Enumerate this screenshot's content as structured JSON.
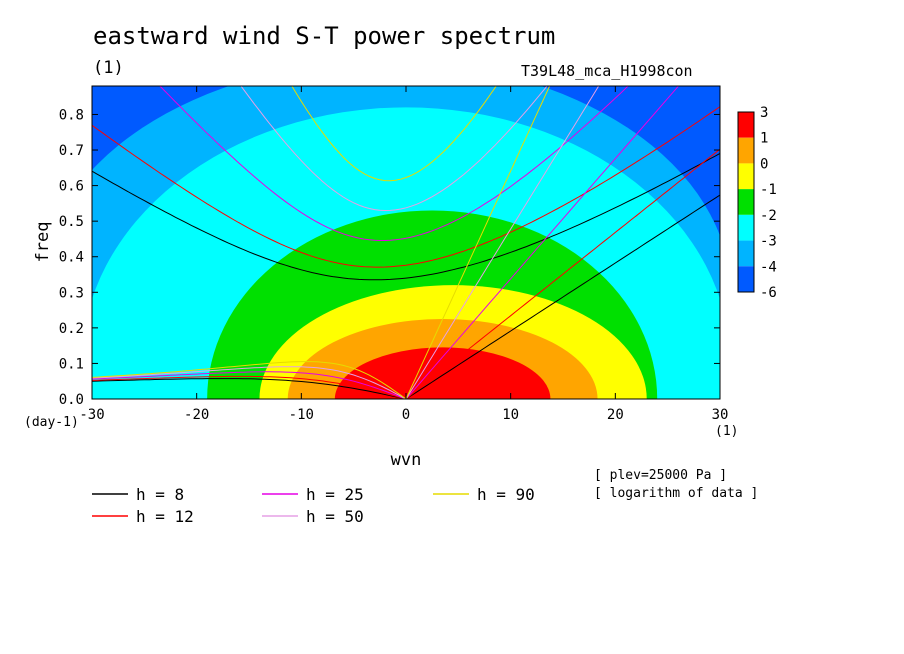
{
  "header": {
    "title": "eastward wind S-T power spectrum",
    "subtitle_left": "(1)",
    "subtitle_right": "T39L48_mca_H1998con"
  },
  "notes": {
    "x_unit": "(1)",
    "y_unit": "(day-1)",
    "plev": "[ plev=25000 Pa ]",
    "log": "[ logarithm of data ]"
  },
  "chart_data": {
    "type": "heatmap",
    "title": "eastward wind S-T power spectrum",
    "xlabel": "wvn",
    "ylabel": "freq",
    "xlim": [
      -30,
      30
    ],
    "ylim": [
      0,
      0.88
    ],
    "xticks": [
      "-30",
      "-20",
      "-10",
      "0",
      "10",
      "20",
      "30"
    ],
    "yticks": [
      "0.0",
      "0.1",
      "0.2",
      "0.3",
      "0.4",
      "0.5",
      "0.6",
      "0.7",
      "0.8"
    ],
    "colorbar": {
      "levels": [
        "3",
        "1",
        "0",
        "-1",
        "-2",
        "-3",
        "-4",
        "-6"
      ],
      "colors": [
        "#ff0000",
        "#ffa500",
        "#ffff00",
        "#00e000",
        "#00ffff",
        "#00b4ff",
        "#005aff"
      ]
    },
    "contour_bands": [
      {
        "level": 1,
        "color": "#ff0000",
        "center": [
          3.5,
          0
        ],
        "rx": 10.3,
        "ry": 0.145
      },
      {
        "level": 0,
        "color": "#ffa500",
        "center": [
          3.5,
          0
        ],
        "rx": 14.8,
        "ry": 0.225
      },
      {
        "level": -1,
        "color": "#ffff00",
        "center": [
          4.5,
          0
        ],
        "rx": 18.5,
        "ry": 0.32
      },
      {
        "level": -2,
        "color": "#00e000",
        "center": [
          2.5,
          0
        ],
        "rx": 21.5,
        "ry": 0.53
      },
      {
        "level": -3,
        "color": "#00ffff",
        "center": [
          0,
          0.1
        ],
        "rx": 31,
        "ry": 0.72
      },
      {
        "level": -4,
        "color": "#00b4ff",
        "center": [
          -2,
          0.3
        ],
        "rx": 33,
        "ry": 0.65
      }
    ],
    "dispersion_curves": [
      {
        "name": "h =  8",
        "h": 8,
        "color": "#000000"
      },
      {
        "name": "h = 12",
        "h": 12,
        "color": "#ff0000"
      },
      {
        "name": "h = 25",
        "h": 25,
        "color": "#e600e6"
      },
      {
        "name": "h = 50",
        "h": 50,
        "color": "#e6a0e6"
      },
      {
        "name": "h = 90",
        "h": 90,
        "color": "#e6dc00"
      }
    ]
  }
}
